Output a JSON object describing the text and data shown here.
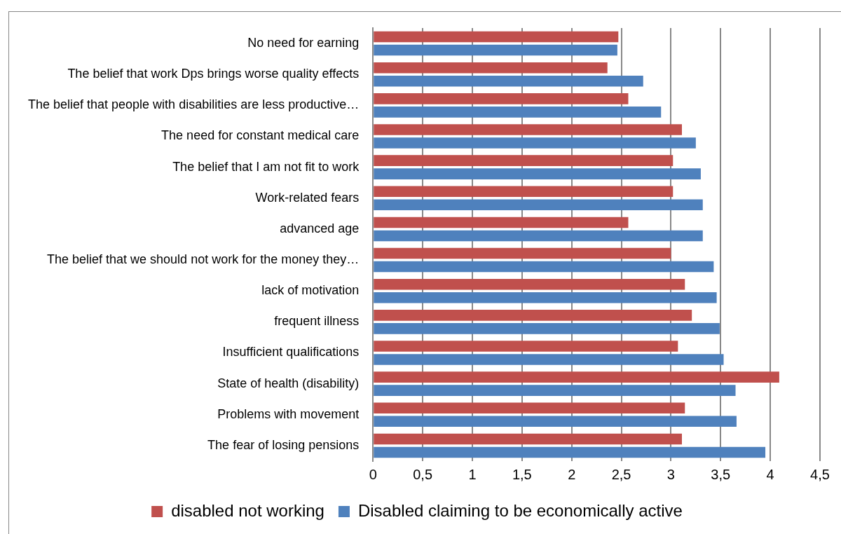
{
  "chart_data": {
    "type": "bar",
    "orientation": "horizontal",
    "categories": [
      "No need for earning",
      "The belief that work Dps brings worse quality effects",
      "The belief that people with disabilities are less productive…",
      "The need for constant medical care",
      "The belief that I am not fit to work",
      "Work-related fears",
      "advanced age",
      "The belief that we should not work for the money they…",
      "lack of motivation",
      "frequent illness",
      "Insufficient qualifications",
      "State of health (disability)",
      "Problems with movement",
      "The fear of losing pensions"
    ],
    "series": [
      {
        "name": "disabled not working",
        "color": "#c0504d",
        "values": [
          2.47,
          2.36,
          2.57,
          3.11,
          3.02,
          3.02,
          2.57,
          3.0,
          3.14,
          3.21,
          3.07,
          4.09,
          3.14,
          3.11
        ]
      },
      {
        "name": "Disabled claiming to be economically active",
        "color": "#4f81bd",
        "values": [
          2.46,
          2.72,
          2.9,
          3.25,
          3.3,
          3.32,
          3.32,
          3.43,
          3.46,
          3.49,
          3.53,
          3.65,
          3.66,
          3.95
        ]
      }
    ],
    "xlim": [
      0,
      4.5
    ],
    "xticks": [
      0,
      {
        "value": 0.5,
        "label": "0,5"
      },
      1,
      {
        "value": 1.5,
        "label": "1,5"
      },
      2,
      {
        "value": 2.5,
        "label": "2,5"
      },
      3,
      {
        "value": 3.5,
        "label": "3,5"
      },
      4,
      {
        "value": 4.5,
        "label": "4,5"
      }
    ],
    "grid": "x",
    "legend": "bottom"
  }
}
